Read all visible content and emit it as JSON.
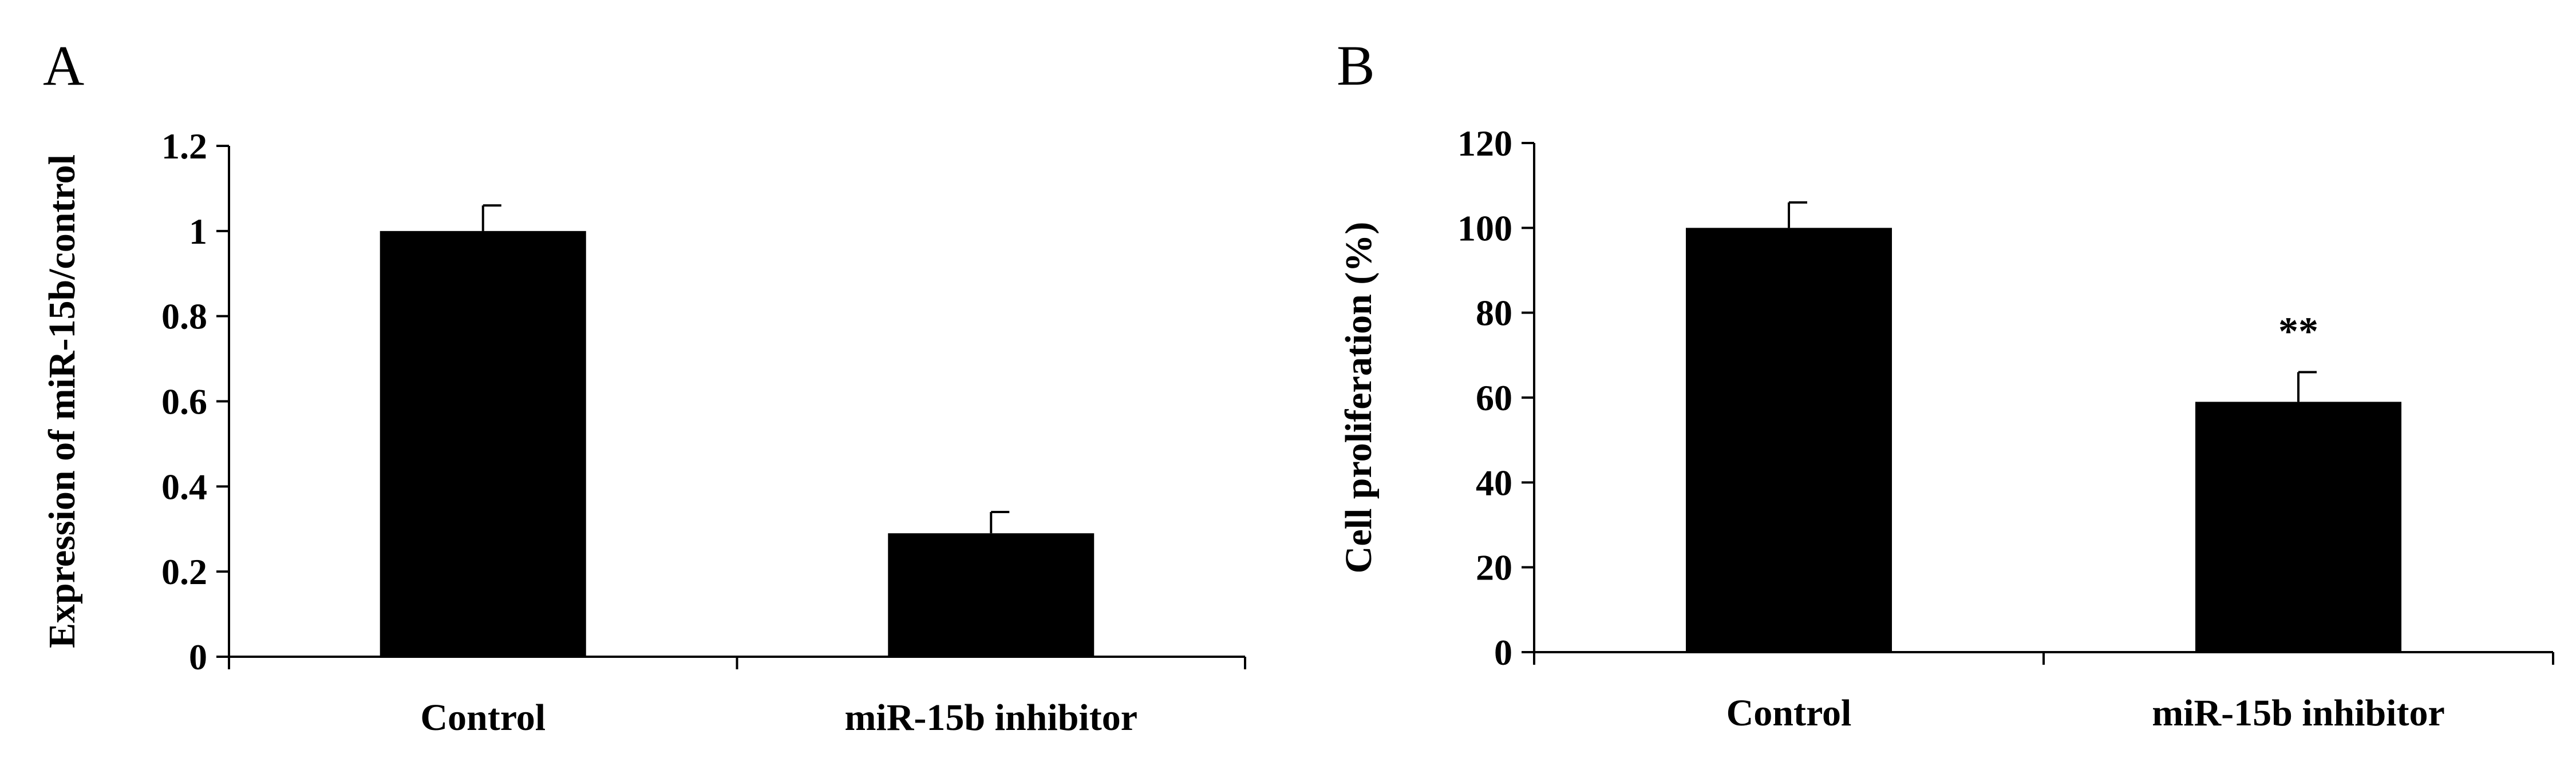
{
  "chart_data": [
    {
      "type": "bar",
      "panel": "A",
      "categories": [
        "Control",
        "miR-15b inhibitor"
      ],
      "values": [
        1.0,
        0.29
      ],
      "errors": [
        0.06,
        0.05
      ],
      "annotations": [
        "",
        ""
      ],
      "ylabel": "Expression of miR-15b/control",
      "ylim": [
        0,
        1.2
      ],
      "yticks": [
        0,
        0.2,
        0.4,
        0.6,
        0.8,
        1,
        1.2
      ],
      "ytick_labels": [
        "0",
        "0.2",
        "0.4",
        "0.6",
        "0.8",
        "1",
        "1.2"
      ],
      "bar_color": "#000000",
      "grid": false,
      "legend": "none"
    },
    {
      "type": "bar",
      "panel": "B",
      "categories": [
        "Control",
        "miR-15b inhibitor"
      ],
      "values": [
        100,
        59
      ],
      "errors": [
        6,
        7
      ],
      "annotations": [
        "",
        "**"
      ],
      "ylabel": "Cell proliferation (%)",
      "ylim": [
        0,
        120
      ],
      "yticks": [
        0,
        20,
        40,
        60,
        80,
        100,
        120
      ],
      "ytick_labels": [
        "0",
        "20",
        "40",
        "60",
        "80",
        "100",
        "120"
      ],
      "bar_color": "#000000",
      "grid": false,
      "legend": "none"
    }
  ]
}
